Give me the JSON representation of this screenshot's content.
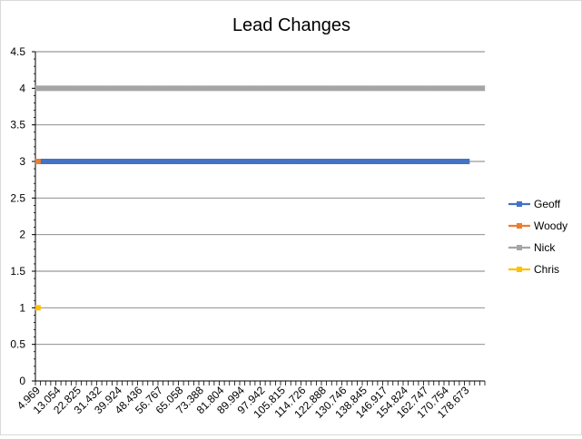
{
  "chart_data": {
    "type": "line",
    "title": "Lead Changes",
    "xlabel": "",
    "ylabel": "",
    "ylim": [
      0,
      4.5
    ],
    "y_ticks": [
      "0",
      "0.5",
      "1",
      "1.5",
      "2",
      "2.5",
      "3",
      "3.5",
      "4",
      "4.5"
    ],
    "y_tick_values": [
      0,
      0.5,
      1,
      1.5,
      2,
      2.5,
      3,
      3.5,
      4,
      4.5
    ],
    "grid": true,
    "legend_position": "right",
    "x_tick_labels": [
      "4.969",
      "13.054",
      "22.825",
      "31.432",
      "39.924",
      "48.436",
      "56.767",
      "65.058",
      "73.388",
      "81.804",
      "89.994",
      "97.942",
      "105.815",
      "114.726",
      "122.888",
      "130.746",
      "138.845",
      "146.917",
      "154.824",
      "162.747",
      "170.754",
      "178.673"
    ],
    "category_count": 88,
    "series": [
      {
        "name": "Geoff",
        "color": "#4472C4",
        "y": 3,
        "start_index": 1,
        "end_index": 84
      },
      {
        "name": "Woody",
        "color": "#ED7D31",
        "y": 3,
        "start_index": 0,
        "end_index": 0
      },
      {
        "name": "Nick",
        "color": "#A5A5A5",
        "y": 4,
        "start_index": 0,
        "end_index": 87
      },
      {
        "name": "Chris",
        "color": "#FFC000",
        "y": 1,
        "start_index": 0,
        "end_index": 0
      }
    ]
  }
}
